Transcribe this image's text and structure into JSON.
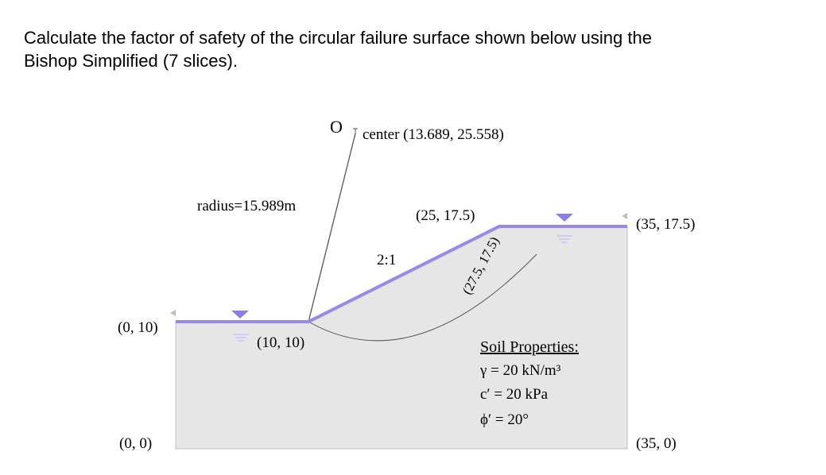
{
  "question": {
    "line1": "Calculate the factor of safety of the circular failure surface shown below using the",
    "line2": "Bishop Simplified (7 slices)."
  },
  "diagram": {
    "center_mark": "O",
    "center_label": "center (13.689, 25.558)",
    "radius_label": "radius=15.989m",
    "slope_ratio": "2:1",
    "points": {
      "crest": "(25, 17.5)",
      "right_top": "(35, 17.5)",
      "left_top": "(0, 10)",
      "toe": "(10, 10)",
      "origin": "(0, 0)",
      "right_bottom": "(35, 0)",
      "exit": "(27.5, 17.5)"
    },
    "soil": {
      "heading": "Soil Properties:",
      "unit_weight": "γ  = 20 kN/m³",
      "cohesion": "c′ = 20 kPa",
      "friction": "ϕ′ = 20°"
    },
    "colors": {
      "ground_surface": "#9b87e8",
      "soil_fill": "#e6e6e6",
      "water_marker": "#8a7de6"
    }
  }
}
